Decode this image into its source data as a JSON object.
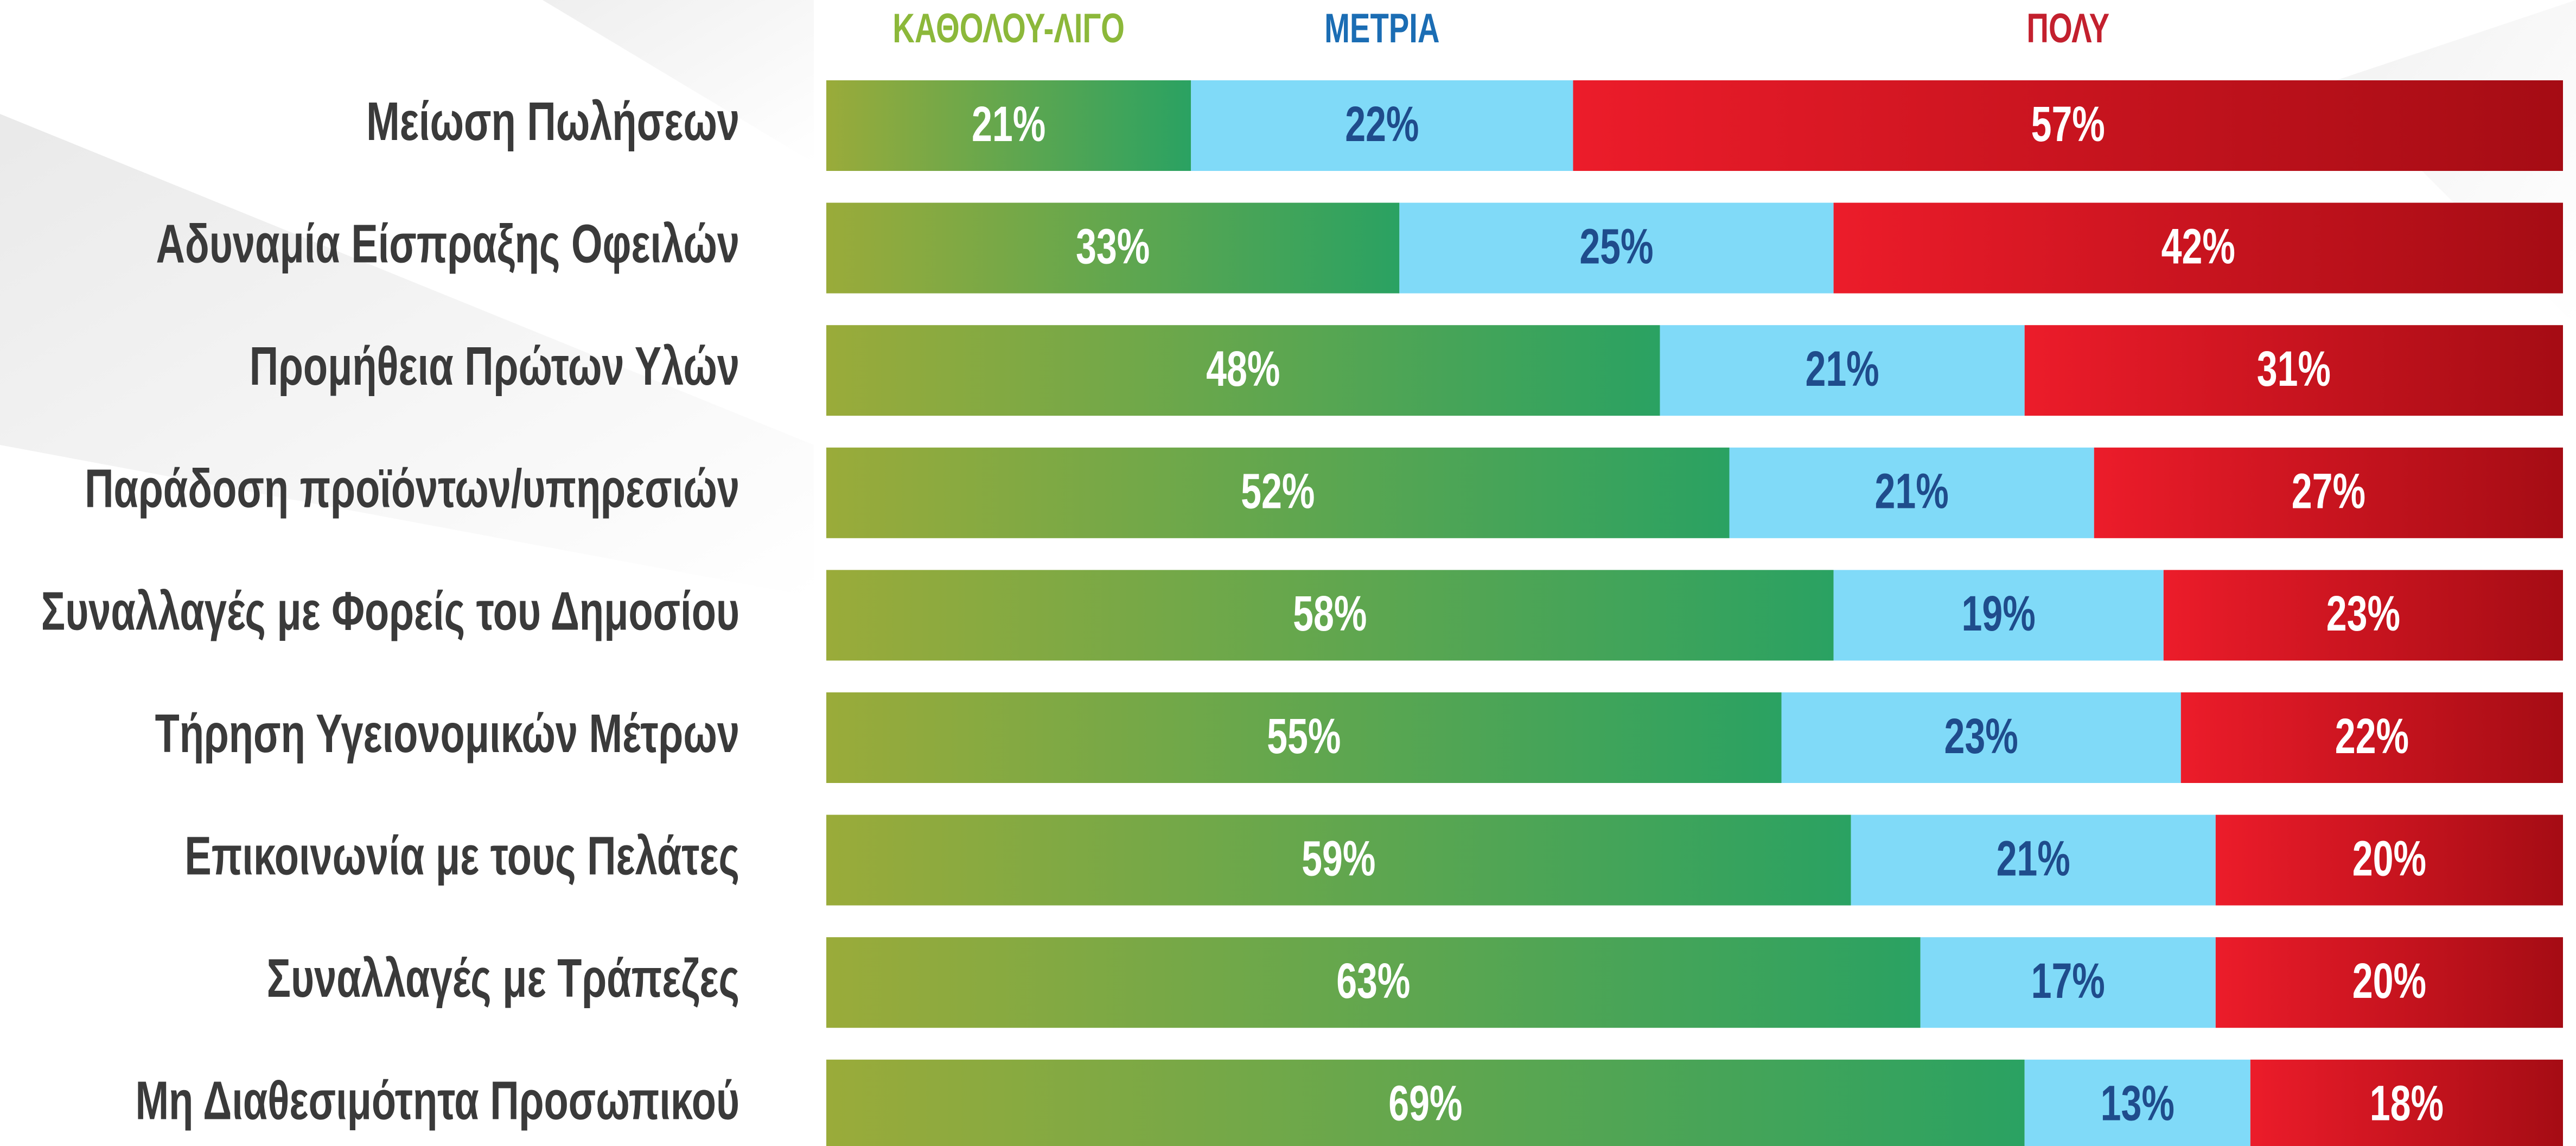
{
  "chart_data": {
    "type": "stacked_bar_horizontal",
    "categories": [
      "Μείωση Πωλήσεων",
      "Αδυναμία Είσπραξης Οφειλών",
      "Προμήθεια Πρώτων Υλών",
      "Παράδοση προϊόντων/υπηρεσιών",
      "Συναλλαγές με Φορείς του Δημοσίου",
      "Τήρηση Υγειονομικών Μέτρων",
      "Επικοινωνία με τους Πελάτες",
      "Συναλλαγές με Τράπεζες",
      "Μη Διαθεσιμότητα Προσωπικού"
    ],
    "xlim": [
      0,
      100
    ],
    "series": [
      {
        "name": "ΚΑΘΟΛΟΥ-ΛΙΓΟ",
        "color": [
          "#9aab3a",
          "#2aa262"
        ],
        "legend_color": "#8cb83a",
        "label_color": "#ffffff",
        "values": [
          21,
          33,
          48,
          52,
          58,
          55,
          59,
          63,
          69
        ],
        "value_labels": [
          "21%",
          "33%",
          "48%",
          "52%",
          "58%",
          "55%",
          "59%",
          "63%",
          "69%"
        ]
      },
      {
        "name": "ΜΕΤΡΙΑ",
        "color": "#80daf8",
        "legend_color": "#1b6db4",
        "label_color": "#1f4c8c",
        "values": [
          22,
          25,
          21,
          21,
          19,
          23,
          21,
          17,
          13
        ],
        "value_labels": [
          "22%",
          "25%",
          "21%",
          "21%",
          "19%",
          "23%",
          "21%",
          "17%",
          "13%"
        ]
      },
      {
        "name": "ΠΟΛΥ",
        "color": [
          "#ec1c2a",
          "#a50c14"
        ],
        "legend_color": "#c3202e",
        "label_color": "#ffffff",
        "values": [
          57,
          42,
          31,
          27,
          23,
          22,
          20,
          20,
          18
        ],
        "value_labels": [
          "57%",
          "42%",
          "31%",
          "27%",
          "23%",
          "22%",
          "20%",
          "20%",
          "18%"
        ]
      }
    ]
  }
}
